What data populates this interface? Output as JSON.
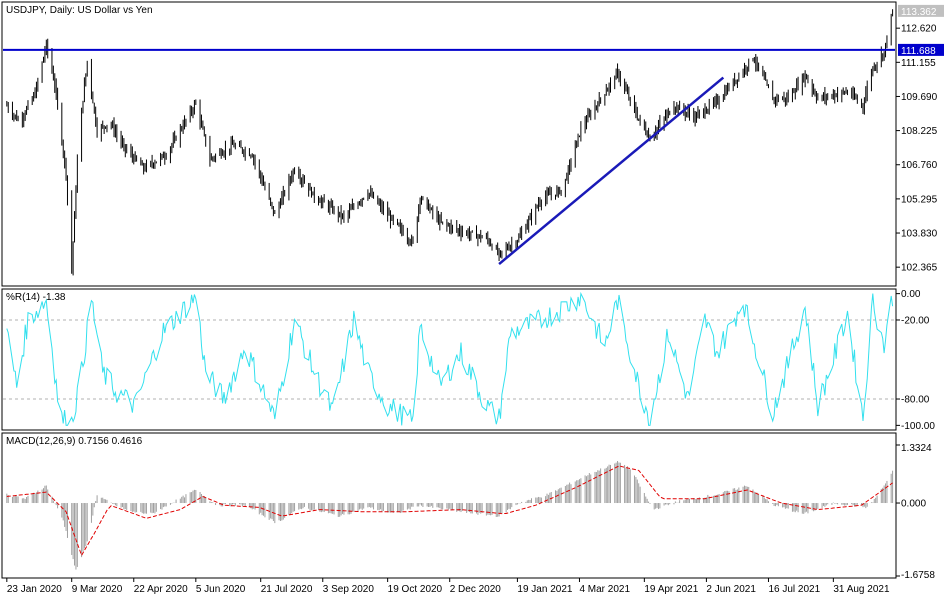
{
  "colors": {
    "price_bars": "#000000",
    "level_line": "#0000cc",
    "trend_line": "#1a1ab8",
    "wpr_line": "#33e0ee",
    "wpr_level": "#b0b0b0",
    "macd_hist": "#a0a0a0",
    "macd_signal": "#e00000",
    "current_price_bg": "#c0c0c0",
    "level_bg": "#0000cc"
  },
  "chart_data": [
    {
      "type": "ohlc",
      "panel": "price",
      "title": "USDJPY, Daily:  US Dollar vs Yen",
      "ylim": [
        101.6,
        113.7
      ],
      "yticks": [
        "113.362",
        "112.620",
        "111.155",
        "109.690",
        "108.225",
        "106.760",
        "105.295",
        "103.830",
        "102.365"
      ],
      "current_price": "113.362",
      "horizontal_level": {
        "label": "111.688",
        "value": 111.688
      },
      "trend_lines": [
        {
          "from": {
            "date": "2021-01-06",
            "price": 102.5
          },
          "to": {
            "date": "2021-06-14",
            "price": 110.5
          }
        }
      ],
      "series_anchors": [
        {
          "date": "2020-01-23",
          "price": 109.3
        },
        {
          "date": "2020-02-01",
          "price": 108.6
        },
        {
          "date": "2020-02-12",
          "price": 109.8
        },
        {
          "date": "2020-02-20",
          "price": 111.9
        },
        {
          "date": "2020-02-26",
          "price": 110.2
        },
        {
          "date": "2020-03-05",
          "price": 106.4
        },
        {
          "date": "2020-03-09",
          "price": 102.3
        },
        {
          "date": "2020-03-14",
          "price": 108.0
        },
        {
          "date": "2020-03-20",
          "price": 111.2
        },
        {
          "date": "2020-03-27",
          "price": 108.2
        },
        {
          "date": "2020-04-05",
          "price": 108.6
        },
        {
          "date": "2020-04-15",
          "price": 107.5
        },
        {
          "date": "2020-04-29",
          "price": 106.6
        },
        {
          "date": "2020-05-15",
          "price": 107.2
        },
        {
          "date": "2020-06-05",
          "price": 109.4
        },
        {
          "date": "2020-06-15",
          "price": 107.0
        },
        {
          "date": "2020-07-01",
          "price": 107.6
        },
        {
          "date": "2020-07-15",
          "price": 107.2
        },
        {
          "date": "2020-07-31",
          "price": 104.6
        },
        {
          "date": "2020-08-14",
          "price": 106.6
        },
        {
          "date": "2020-08-28",
          "price": 105.4
        },
        {
          "date": "2020-09-18",
          "price": 104.5
        },
        {
          "date": "2020-10-05",
          "price": 105.6
        },
        {
          "date": "2020-10-19",
          "price": 104.6
        },
        {
          "date": "2020-11-06",
          "price": 103.4
        },
        {
          "date": "2020-11-11",
          "price": 105.4
        },
        {
          "date": "2020-11-25",
          "price": 104.3
        },
        {
          "date": "2020-12-10",
          "price": 103.9
        },
        {
          "date": "2020-12-28",
          "price": 103.6
        },
        {
          "date": "2021-01-06",
          "price": 102.9
        },
        {
          "date": "2021-01-20",
          "price": 103.6
        },
        {
          "date": "2021-02-05",
          "price": 105.3
        },
        {
          "date": "2021-02-20",
          "price": 105.7
        },
        {
          "date": "2021-03-05",
          "price": 108.3
        },
        {
          "date": "2021-03-31",
          "price": 110.7
        },
        {
          "date": "2021-04-15",
          "price": 108.7
        },
        {
          "date": "2021-04-23",
          "price": 107.9
        },
        {
          "date": "2021-05-10",
          "price": 109.3
        },
        {
          "date": "2021-05-25",
          "price": 108.8
        },
        {
          "date": "2021-06-10",
          "price": 109.5
        },
        {
          "date": "2021-06-28",
          "price": 110.8
        },
        {
          "date": "2021-07-05",
          "price": 111.4
        },
        {
          "date": "2021-07-19",
          "price": 109.6
        },
        {
          "date": "2021-07-30",
          "price": 109.6
        },
        {
          "date": "2021-08-11",
          "price": 110.6
        },
        {
          "date": "2021-08-20",
          "price": 109.6
        },
        {
          "date": "2021-09-10",
          "price": 109.9
        },
        {
          "date": "2021-09-21",
          "price": 109.3
        },
        {
          "date": "2021-09-27",
          "price": 110.8
        },
        {
          "date": "2021-10-01",
          "price": 111.2
        },
        {
          "date": "2021-10-06",
          "price": 111.6
        },
        {
          "date": "2021-10-12",
          "price": 113.36
        }
      ]
    },
    {
      "type": "line",
      "panel": "wpr",
      "title": "%R(14) -1.38",
      "ylim": [
        -102,
        2
      ],
      "yticks": [
        "0.00",
        "-20.00",
        "-80.00",
        "-100.00"
      ],
      "levels": [
        -20,
        -80
      ],
      "series_anchors": [
        {
          "date": "2020-01-23",
          "value": -30
        },
        {
          "date": "2020-01-30",
          "value": -70
        },
        {
          "date": "2020-02-07",
          "value": -20
        },
        {
          "date": "2020-02-20",
          "value": -5
        },
        {
          "date": "2020-03-01",
          "value": -95
        },
        {
          "date": "2020-03-09",
          "value": -98
        },
        {
          "date": "2020-03-16",
          "value": -60
        },
        {
          "date": "2020-03-23",
          "value": -5
        },
        {
          "date": "2020-03-31",
          "value": -60
        },
        {
          "date": "2020-04-10",
          "value": -75
        },
        {
          "date": "2020-04-23",
          "value": -85
        },
        {
          "date": "2020-05-12",
          "value": -30
        },
        {
          "date": "2020-06-05",
          "value": -2
        },
        {
          "date": "2020-06-12",
          "value": -60
        },
        {
          "date": "2020-06-25",
          "value": -80
        },
        {
          "date": "2020-07-10",
          "value": -40
        },
        {
          "date": "2020-07-31",
          "value": -95
        },
        {
          "date": "2020-08-14",
          "value": -20
        },
        {
          "date": "2020-08-28",
          "value": -60
        },
        {
          "date": "2020-09-10",
          "value": -90
        },
        {
          "date": "2020-09-25",
          "value": -20
        },
        {
          "date": "2020-10-05",
          "value": -60
        },
        {
          "date": "2020-10-19",
          "value": -85
        },
        {
          "date": "2020-11-06",
          "value": -98
        },
        {
          "date": "2020-11-11",
          "value": -25
        },
        {
          "date": "2020-11-25",
          "value": -70
        },
        {
          "date": "2020-12-10",
          "value": -45
        },
        {
          "date": "2020-12-28",
          "value": -85
        },
        {
          "date": "2021-01-06",
          "value": -95
        },
        {
          "date": "2021-01-14",
          "value": -30
        },
        {
          "date": "2021-02-05",
          "value": -20
        },
        {
          "date": "2021-02-22",
          "value": -10
        },
        {
          "date": "2021-03-05",
          "value": -2
        },
        {
          "date": "2021-03-22",
          "value": -40
        },
        {
          "date": "2021-03-31",
          "value": -5
        },
        {
          "date": "2021-04-15",
          "value": -70
        },
        {
          "date": "2021-04-23",
          "value": -95
        },
        {
          "date": "2021-05-06",
          "value": -30
        },
        {
          "date": "2021-05-20",
          "value": -80
        },
        {
          "date": "2021-06-01",
          "value": -20
        },
        {
          "date": "2021-06-10",
          "value": -45
        },
        {
          "date": "2021-06-28",
          "value": -5
        },
        {
          "date": "2021-07-19",
          "value": -90
        },
        {
          "date": "2021-07-28",
          "value": -60
        },
        {
          "date": "2021-08-11",
          "value": -10
        },
        {
          "date": "2021-08-20",
          "value": -85
        },
        {
          "date": "2021-09-03",
          "value": -40
        },
        {
          "date": "2021-09-10",
          "value": -15
        },
        {
          "date": "2021-09-21",
          "value": -95
        },
        {
          "date": "2021-09-28",
          "value": -5
        },
        {
          "date": "2021-10-06",
          "value": -40
        },
        {
          "date": "2021-10-12",
          "value": -1.38
        }
      ]
    },
    {
      "type": "bar+line",
      "panel": "macd",
      "title": "MACD(12,26,9) 0.7156 0.4616",
      "ylim": [
        -1.6758,
        1.3324
      ],
      "yticks": [
        "1.3324",
        "0.000",
        "-1.6758"
      ],
      "series": [
        {
          "name": "MACD",
          "style": "histogram",
          "anchors": [
            {
              "date": "2020-01-23",
              "value": 0.2
            },
            {
              "date": "2020-02-05",
              "value": 0.1
            },
            {
              "date": "2020-02-20",
              "value": 0.4
            },
            {
              "date": "2020-03-03",
              "value": -0.4
            },
            {
              "date": "2020-03-12",
              "value": -1.55
            },
            {
              "date": "2020-03-20",
              "value": -0.9
            },
            {
              "date": "2020-03-27",
              "value": 0.2
            },
            {
              "date": "2020-04-05",
              "value": 0.0
            },
            {
              "date": "2020-04-20",
              "value": -0.2
            },
            {
              "date": "2020-05-05",
              "value": -0.25
            },
            {
              "date": "2020-06-05",
              "value": 0.3
            },
            {
              "date": "2020-06-20",
              "value": -0.05
            },
            {
              "date": "2020-07-10",
              "value": -0.05
            },
            {
              "date": "2020-08-01",
              "value": -0.45
            },
            {
              "date": "2020-08-20",
              "value": -0.1
            },
            {
              "date": "2020-09-15",
              "value": -0.3
            },
            {
              "date": "2020-10-05",
              "value": -0.1
            },
            {
              "date": "2020-10-25",
              "value": -0.25
            },
            {
              "date": "2020-11-10",
              "value": -0.05
            },
            {
              "date": "2020-12-10",
              "value": -0.2
            },
            {
              "date": "2021-01-06",
              "value": -0.3
            },
            {
              "date": "2021-01-20",
              "value": 0.0
            },
            {
              "date": "2021-02-10",
              "value": 0.2
            },
            {
              "date": "2021-03-10",
              "value": 0.65
            },
            {
              "date": "2021-04-01",
              "value": 0.95
            },
            {
              "date": "2021-04-10",
              "value": 0.75
            },
            {
              "date": "2021-04-25",
              "value": -0.15
            },
            {
              "date": "2021-05-15",
              "value": 0.05
            },
            {
              "date": "2021-06-10",
              "value": 0.2
            },
            {
              "date": "2021-07-01",
              "value": 0.4
            },
            {
              "date": "2021-07-20",
              "value": -0.05
            },
            {
              "date": "2021-08-10",
              "value": -0.25
            },
            {
              "date": "2021-09-01",
              "value": 0.0
            },
            {
              "date": "2021-09-25",
              "value": -0.1
            },
            {
              "date": "2021-10-05",
              "value": 0.35
            },
            {
              "date": "2021-10-12",
              "value": 0.7156
            }
          ]
        },
        {
          "name": "Signal",
          "style": "dashed-line",
          "anchors": [
            {
              "date": "2020-01-23",
              "value": 0.15
            },
            {
              "date": "2020-02-20",
              "value": 0.25
            },
            {
              "date": "2020-03-05",
              "value": -0.2
            },
            {
              "date": "2020-03-16",
              "value": -1.2
            },
            {
              "date": "2020-03-25",
              "value": -0.7
            },
            {
              "date": "2020-04-05",
              "value": -0.05
            },
            {
              "date": "2020-05-01",
              "value": -0.35
            },
            {
              "date": "2020-05-25",
              "value": -0.15
            },
            {
              "date": "2020-06-10",
              "value": 0.15
            },
            {
              "date": "2020-06-25",
              "value": -0.05
            },
            {
              "date": "2020-07-20",
              "value": -0.1
            },
            {
              "date": "2020-08-05",
              "value": -0.3
            },
            {
              "date": "2020-09-01",
              "value": -0.15
            },
            {
              "date": "2020-10-01",
              "value": -0.2
            },
            {
              "date": "2020-11-01",
              "value": -0.2
            },
            {
              "date": "2020-12-10",
              "value": -0.15
            },
            {
              "date": "2021-01-10",
              "value": -0.25
            },
            {
              "date": "2021-02-01",
              "value": -0.05
            },
            {
              "date": "2021-03-01",
              "value": 0.35
            },
            {
              "date": "2021-04-01",
              "value": 0.85
            },
            {
              "date": "2021-04-15",
              "value": 0.75
            },
            {
              "date": "2021-05-01",
              "value": 0.1
            },
            {
              "date": "2021-06-01",
              "value": 0.1
            },
            {
              "date": "2021-07-01",
              "value": 0.3
            },
            {
              "date": "2021-07-25",
              "value": 0.0
            },
            {
              "date": "2021-08-20",
              "value": -0.15
            },
            {
              "date": "2021-09-20",
              "value": -0.05
            },
            {
              "date": "2021-10-12",
              "value": 0.4616
            }
          ]
        }
      ]
    }
  ],
  "x_axis": {
    "labels": [
      {
        "date": "2020-01-23",
        "text": "23 Jan 2020"
      },
      {
        "date": "2020-03-09",
        "text": "9 Mar 2020"
      },
      {
        "date": "2020-04-22",
        "text": "22 Apr 2020"
      },
      {
        "date": "2020-06-05",
        "text": "5 Jun 2020"
      },
      {
        "date": "2020-07-21",
        "text": "21 Jul 2020"
      },
      {
        "date": "2020-09-03",
        "text": "3 Sep 2020"
      },
      {
        "date": "2020-10-19",
        "text": "19 Oct 2020"
      },
      {
        "date": "2020-12-02",
        "text": "2 Dec 2020"
      },
      {
        "date": "2021-01-19",
        "text": "19 Jan 2021"
      },
      {
        "date": "2021-03-04",
        "text": "4 Mar 2021"
      },
      {
        "date": "2021-04-19",
        "text": "19 Apr 2021"
      },
      {
        "date": "2021-06-02",
        "text": "2 Jun 2021"
      },
      {
        "date": "2021-07-16",
        "text": "16 Jul 2021"
      },
      {
        "date": "2021-08-31",
        "text": "31 Aug 2021"
      }
    ],
    "range": [
      "2020-01-21",
      "2021-10-13"
    ]
  }
}
